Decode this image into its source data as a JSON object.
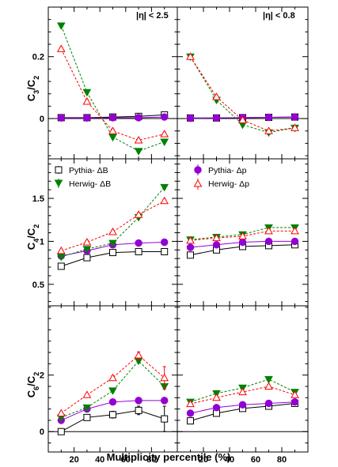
{
  "figure": {
    "xlabel": "Multiplicity percentile (%)",
    "xlim": [
      0,
      100
    ],
    "xticks": [
      20,
      40,
      60,
      80
    ]
  },
  "rows": [
    {
      "ylabel_main": "C",
      "ylabel_num": "3",
      "ylabel_den": "2",
      "ylim": [
        -0.13,
        0.36
      ],
      "yticks": [
        0,
        0.2
      ],
      "ytick_labels": [
        "0",
        "0.2"
      ]
    },
    {
      "ylabel_main": "C",
      "ylabel_num": "4",
      "ylabel_den": "2",
      "ylim": [
        0.25,
        1.96
      ],
      "yticks": [
        0.5,
        1,
        1.5
      ],
      "ytick_labels": [
        "0.5",
        "1",
        "1.5"
      ]
    },
    {
      "ylabel_main": "C",
      "ylabel_num": "6",
      "ylabel_den": "2",
      "ylim": [
        -0.72,
        4.45
      ],
      "yticks": [
        0,
        2
      ],
      "ytick_labels": [
        "0",
        "2"
      ]
    }
  ],
  "columns": [
    {
      "eta_label": "|η| < 2.5"
    },
    {
      "eta_label": "|η| < 0.8"
    }
  ],
  "legend": {
    "left": [
      {
        "key": "pythia",
        "label": "Pythia- ΔB"
      },
      {
        "key": "herwig",
        "label": "Herwig- ΔB"
      }
    ],
    "right": [
      {
        "key": "pythia",
        "label": "Pythia- Δp"
      },
      {
        "key": "herwig",
        "label": "Herwig- Δp"
      }
    ]
  },
  "styles": {
    "pythia_B": {
      "color": "#000000",
      "marker": "open-square",
      "dash": false
    },
    "pythia_p": {
      "color": "#9400d3",
      "marker": "filled-circle",
      "dash": false
    },
    "herwig_B": {
      "color": "#008000",
      "marker": "filled-triangle-down",
      "dash": true
    },
    "herwig_p": {
      "color": "#ff0000",
      "marker": "open-triangle-up",
      "dash": true
    }
  },
  "chart_data": [
    {
      "type": "line",
      "panel": "C3/C2 |η|<2.5",
      "x": [
        10,
        30,
        50,
        70,
        90
      ],
      "series": [
        {
          "style": "pythia_B",
          "values": [
            0.003,
            0.003,
            0.005,
            0.007,
            0.012
          ],
          "errors": [
            0.004,
            0.004,
            0.004,
            0.005,
            0.01
          ]
        },
        {
          "style": "pythia_p",
          "values": [
            0.002,
            0.002,
            0.003,
            0.003,
            0.005
          ]
        },
        {
          "style": "herwig_B",
          "values": [
            0.3,
            0.085,
            -0.06,
            -0.105,
            -0.075
          ]
        },
        {
          "style": "herwig_p",
          "values": [
            0.225,
            0.055,
            -0.04,
            -0.07,
            -0.05
          ]
        }
      ]
    },
    {
      "type": "line",
      "panel": "C3/C2 |η|<0.8",
      "x": [
        10,
        30,
        50,
        70,
        90
      ],
      "series": [
        {
          "style": "pythia_B",
          "values": [
            0.002,
            0.002,
            0.003,
            0.004,
            0.005
          ]
        },
        {
          "style": "pythia_p",
          "values": [
            0.001,
            0.002,
            0.003,
            0.004,
            0.005
          ]
        },
        {
          "style": "herwig_B",
          "values": [
            0.2,
            0.06,
            -0.02,
            -0.045,
            -0.03
          ]
        },
        {
          "style": "herwig_p",
          "values": [
            0.2,
            0.07,
            -0.005,
            -0.04,
            -0.03
          ]
        }
      ]
    },
    {
      "type": "line",
      "panel": "C4/C2 |η|<2.5",
      "x": [
        10,
        30,
        50,
        70,
        90
      ],
      "series": [
        {
          "style": "pythia_B",
          "values": [
            0.71,
            0.81,
            0.87,
            0.88,
            0.88
          ]
        },
        {
          "style": "pythia_p",
          "values": [
            0.83,
            0.89,
            0.96,
            0.98,
            0.99
          ]
        },
        {
          "style": "herwig_B",
          "values": [
            0.82,
            0.91,
            0.98,
            1.28,
            1.63
          ]
        },
        {
          "style": "herwig_p",
          "values": [
            0.89,
            0.99,
            1.11,
            1.31,
            1.47
          ]
        }
      ]
    },
    {
      "type": "line",
      "panel": "C4/C2 |η|<0.8",
      "x": [
        10,
        30,
        50,
        70,
        90
      ],
      "series": [
        {
          "style": "pythia_B",
          "values": [
            0.84,
            0.9,
            0.94,
            0.95,
            0.96
          ]
        },
        {
          "style": "pythia_p",
          "values": [
            0.93,
            0.96,
            0.99,
            1.0,
            1.0
          ]
        },
        {
          "style": "herwig_B",
          "values": [
            1.02,
            1.05,
            1.08,
            1.16,
            1.16
          ]
        },
        {
          "style": "herwig_p",
          "values": [
            1.01,
            1.04,
            1.06,
            1.12,
            1.12
          ]
        }
      ]
    },
    {
      "type": "line",
      "panel": "C6/C2 |η|<2.5",
      "x": [
        10,
        30,
        50,
        70,
        90
      ],
      "series": [
        {
          "style": "pythia_B",
          "values": [
            0.0,
            0.5,
            0.6,
            0.75,
            0.45
          ],
          "errors": [
            0.1,
            0.1,
            0.12,
            0.15,
            0.45
          ]
        },
        {
          "style": "pythia_p",
          "values": [
            0.4,
            0.8,
            1.05,
            1.1,
            1.1
          ]
        },
        {
          "style": "herwig_B",
          "values": [
            0.5,
            0.85,
            1.45,
            2.5,
            1.6
          ]
        },
        {
          "style": "herwig_p",
          "values": [
            0.65,
            1.3,
            1.9,
            2.7,
            1.9
          ],
          "errors": [
            0.05,
            0.05,
            0.08,
            0.12,
            0.4
          ]
        }
      ]
    },
    {
      "type": "line",
      "panel": "C6/C2 |η|<0.8",
      "x": [
        10,
        30,
        50,
        70,
        90
      ],
      "series": [
        {
          "style": "pythia_B",
          "values": [
            0.38,
            0.65,
            0.82,
            0.9,
            1.0
          ]
        },
        {
          "style": "pythia_p",
          "values": [
            0.65,
            0.85,
            0.95,
            1.0,
            1.05
          ]
        },
        {
          "style": "herwig_B",
          "values": [
            1.05,
            1.35,
            1.55,
            1.85,
            1.4
          ]
        },
        {
          "style": "herwig_p",
          "values": [
            0.98,
            1.2,
            1.4,
            1.6,
            1.3
          ]
        }
      ]
    }
  ]
}
